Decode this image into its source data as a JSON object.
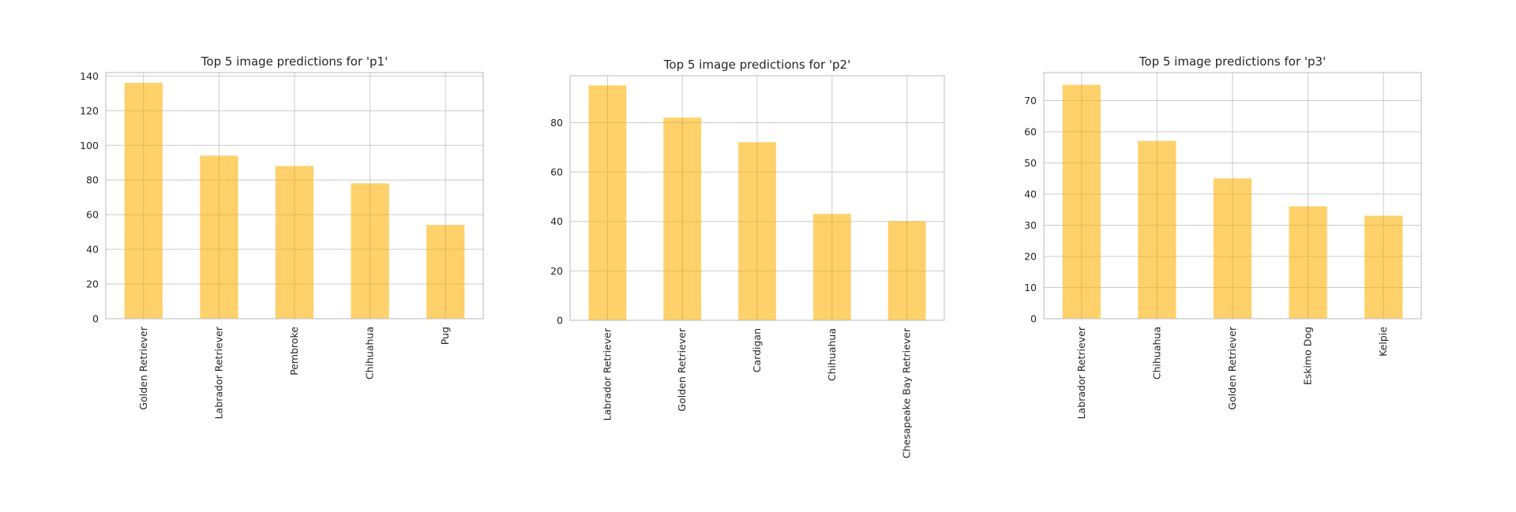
{
  "style": {
    "bar_color": "#ffb000"
  },
  "chart_data": [
    {
      "type": "bar",
      "title": "Top 5 image predictions for 'p1'",
      "categories": [
        "Golden Retriever",
        "Labrador Retriever",
        "Pembroke",
        "Chihuahua",
        "Pug"
      ],
      "values": [
        136,
        94,
        88,
        78,
        54
      ],
      "ylim": [
        0,
        142
      ],
      "yticks": [
        0,
        20,
        40,
        60,
        80,
        100,
        120,
        140
      ],
      "grid": true,
      "xlabel": "",
      "ylabel": ""
    },
    {
      "type": "bar",
      "title": "Top 5 image predictions for 'p2'",
      "categories": [
        "Labrador Retriever",
        "Golden Retriever",
        "Cardigan",
        "Chihuahua",
        "Chesapeake Bay Retriever"
      ],
      "values": [
        95,
        82,
        72,
        43,
        40
      ],
      "ylim": [
        0,
        99
      ],
      "yticks": [
        0,
        20,
        40,
        60,
        80
      ],
      "grid": true,
      "xlabel": "",
      "ylabel": ""
    },
    {
      "type": "bar",
      "title": "Top 5 image predictions for 'p3'",
      "categories": [
        "Labrador Retriever",
        "Chihuahua",
        "Golden Retriever",
        "Eskimo Dog",
        "Kelpie"
      ],
      "values": [
        75,
        57,
        45,
        36,
        33
      ],
      "ylim": [
        0,
        79
      ],
      "yticks": [
        0,
        10,
        20,
        30,
        40,
        50,
        60,
        70
      ],
      "grid": true,
      "xlabel": "",
      "ylabel": ""
    }
  ]
}
